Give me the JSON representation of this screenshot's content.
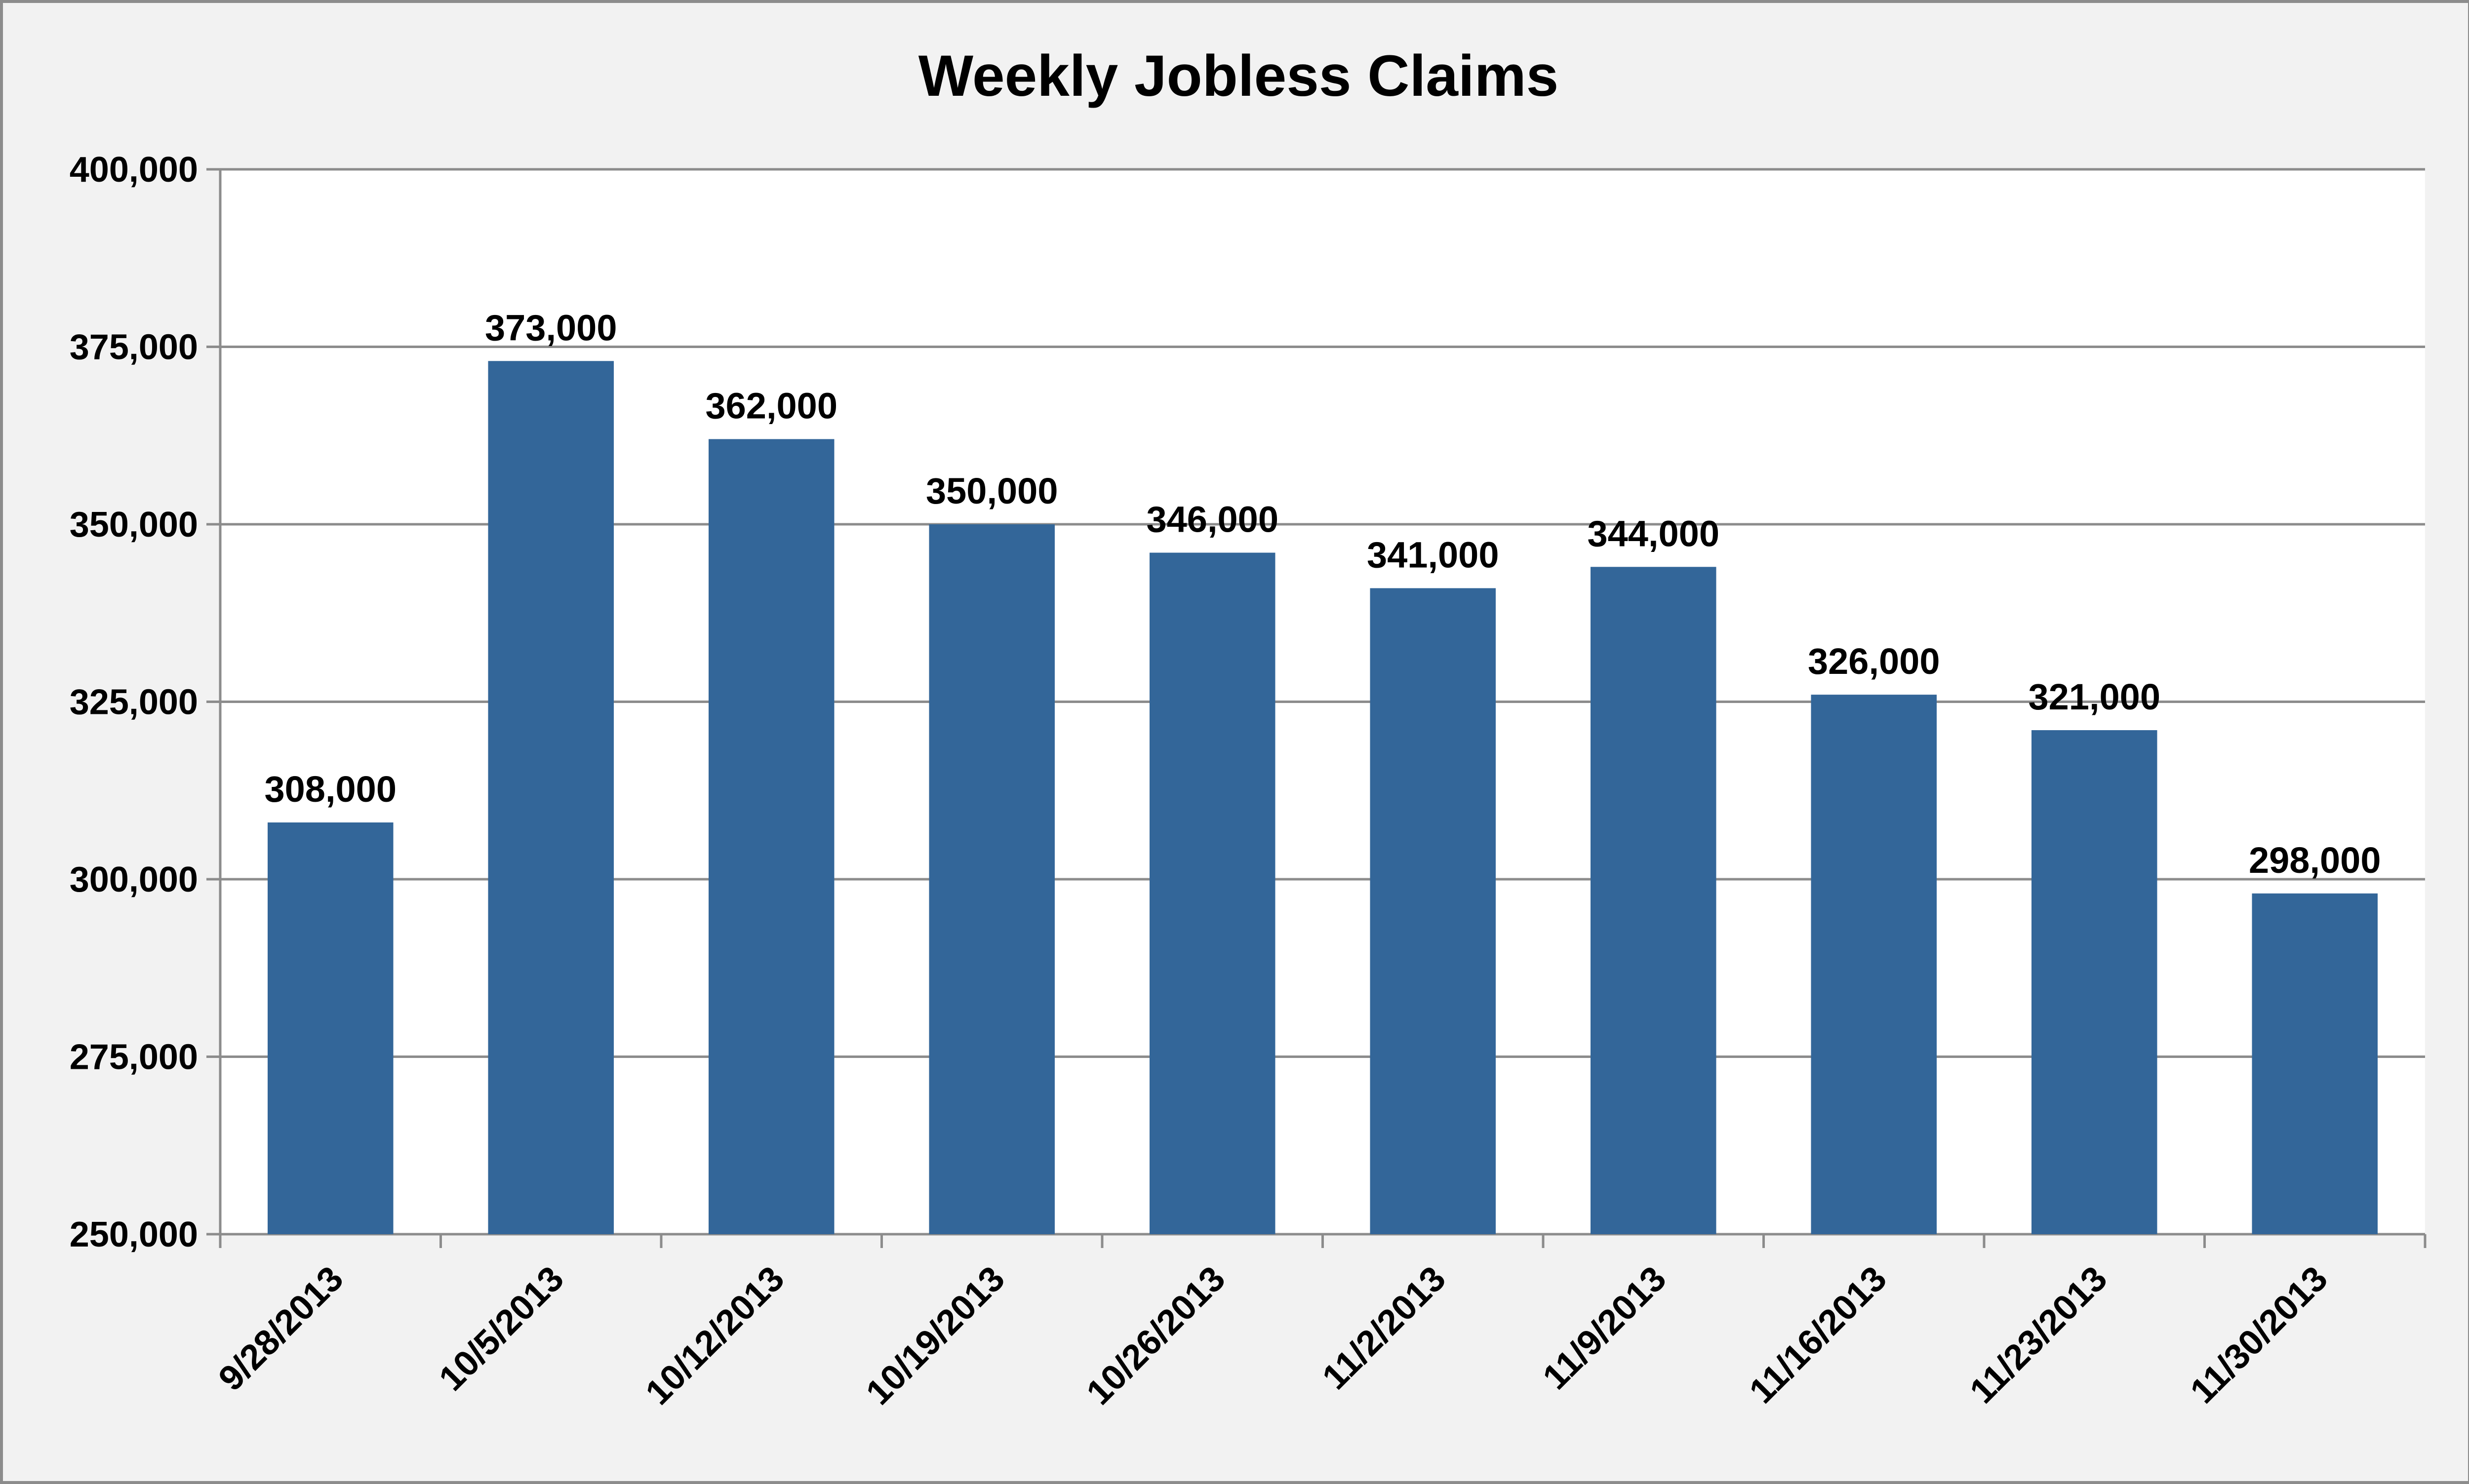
{
  "chart_data": {
    "type": "bar",
    "title": "Weekly Jobless Claims",
    "xlabel": "",
    "ylabel": "",
    "categories": [
      "9/28/2013",
      "10/5/2013",
      "10/12/2013",
      "10/19/2013",
      "10/26/2013",
      "11/2/2013",
      "11/9/2013",
      "11/16/2013",
      "11/23/2013",
      "11/30/2013"
    ],
    "values": [
      308000,
      373000,
      362000,
      350000,
      346000,
      341000,
      344000,
      326000,
      321000,
      298000
    ],
    "data_labels": [
      "308,000",
      "373,000",
      "362,000",
      "350,000",
      "346,000",
      "341,000",
      "344,000",
      "326,000",
      "321,000",
      "298,000"
    ],
    "ylim": [
      250000,
      400000
    ],
    "yticks": [
      250000,
      275000,
      300000,
      325000,
      350000,
      375000,
      400000
    ],
    "ytick_labels": [
      "250,000",
      "275,000",
      "300,000",
      "325,000",
      "350,000",
      "375,000",
      "400,000"
    ],
    "grid": true,
    "legend": "none",
    "colors": {
      "bar": "#336699",
      "grid": "#8c8c8c",
      "plot_bg": "#ffffff",
      "background": "#f2f2f2"
    }
  }
}
